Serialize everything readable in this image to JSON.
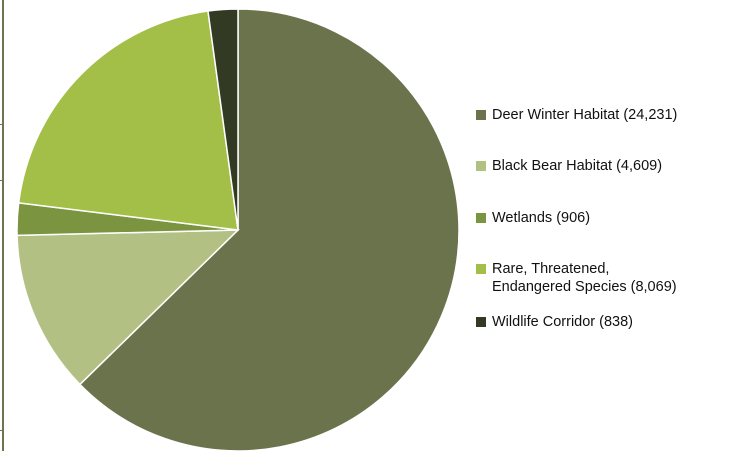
{
  "chart_data": {
    "type": "pie",
    "title": "",
    "legend_position": "right",
    "slices": [
      {
        "label": "Deer Winter Habitat",
        "value_text": "(24,231)",
        "value": 24231,
        "color": "#6b734c"
      },
      {
        "label": "Black Bear Habitat",
        "value_text": "(4,609)",
        "value": 4609,
        "color": "#b3c084"
      },
      {
        "label": "Wetlands",
        "value_text": "(906)",
        "value": 906,
        "color": "#7a9440"
      },
      {
        "label_lines": [
          "Rare, Threatened,",
          "Endangered Species"
        ],
        "value_text": "(8,069)",
        "value": 8069,
        "color": "#a4bf48"
      },
      {
        "label": "Wildlife Corridor",
        "value_text": "(838)",
        "value": 838,
        "color": "#323a24"
      }
    ]
  }
}
